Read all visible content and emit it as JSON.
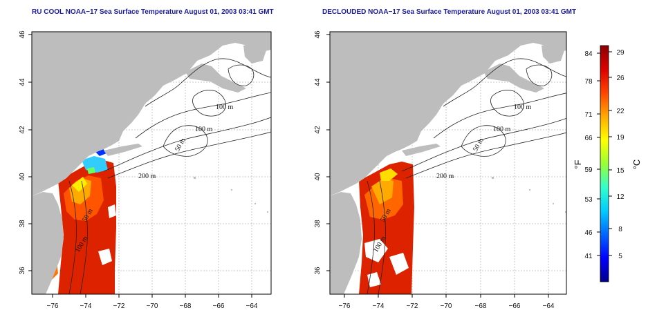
{
  "panels": [
    {
      "title": "RU COOL NOAA−17 Sea Surface Temperature August 01, 2003 03:41 GMT"
    },
    {
      "title": "DECLOUDED NOAA−17 Sea Surface Temperature August 01, 2003 03:41 GMT"
    }
  ],
  "map": {
    "lon_ticks": [
      "−76",
      "−74",
      "−72",
      "−70",
      "−68",
      "−66",
      "−64"
    ],
    "lat_ticks": [
      "36",
      "38",
      "40",
      "42",
      "44",
      "46"
    ],
    "contour_labels": [
      "100 m",
      "100 m",
      "50 m",
      "200 m",
      "50 m",
      "100 m"
    ]
  },
  "colorbar": {
    "fahrenheit_ticks": [
      "84",
      "78",
      "71",
      "66",
      "59",
      "53",
      "46",
      "41"
    ],
    "celsius_ticks": [
      "29",
      "26",
      "22",
      "19",
      "15",
      "12",
      "8",
      "5"
    ],
    "fahrenheit_label": "°F",
    "celsius_label": "°C"
  },
  "colors": {
    "title": "#1a1a9c",
    "land": "#bdbdbd",
    "ocean": "#ffffff",
    "grid": "#b8b8b8",
    "contour": "#222222",
    "scale": [
      "#00008b",
      "#0000ff",
      "#0066ff",
      "#00ccff",
      "#33ffcc",
      "#99ff33",
      "#ffff00",
      "#ffaa00",
      "#ff4400",
      "#dd0000",
      "#8b0000"
    ]
  }
}
